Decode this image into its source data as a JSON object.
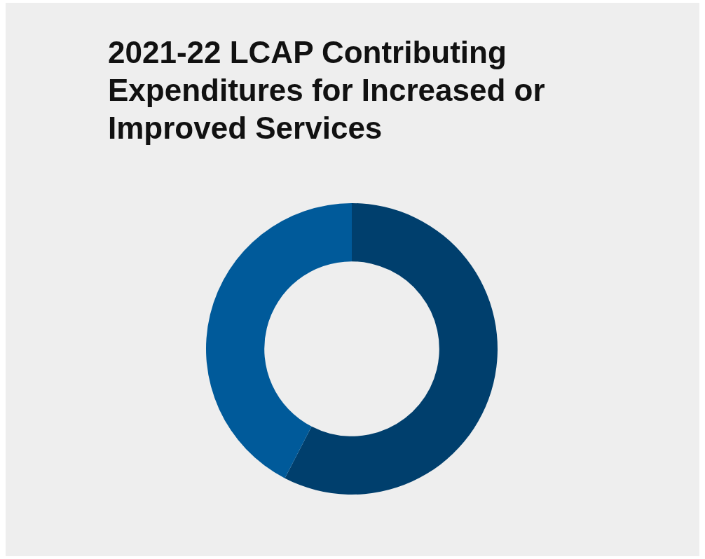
{
  "chart_data": {
    "type": "donut",
    "title": "2021-22 LCAP Contributing Expenditures for Increased or Improved Services",
    "categories": [
      null,
      null
    ],
    "values": [
      57.6,
      42.4
    ],
    "colors": [
      "#003f6d",
      "#005a9a"
    ]
  }
}
